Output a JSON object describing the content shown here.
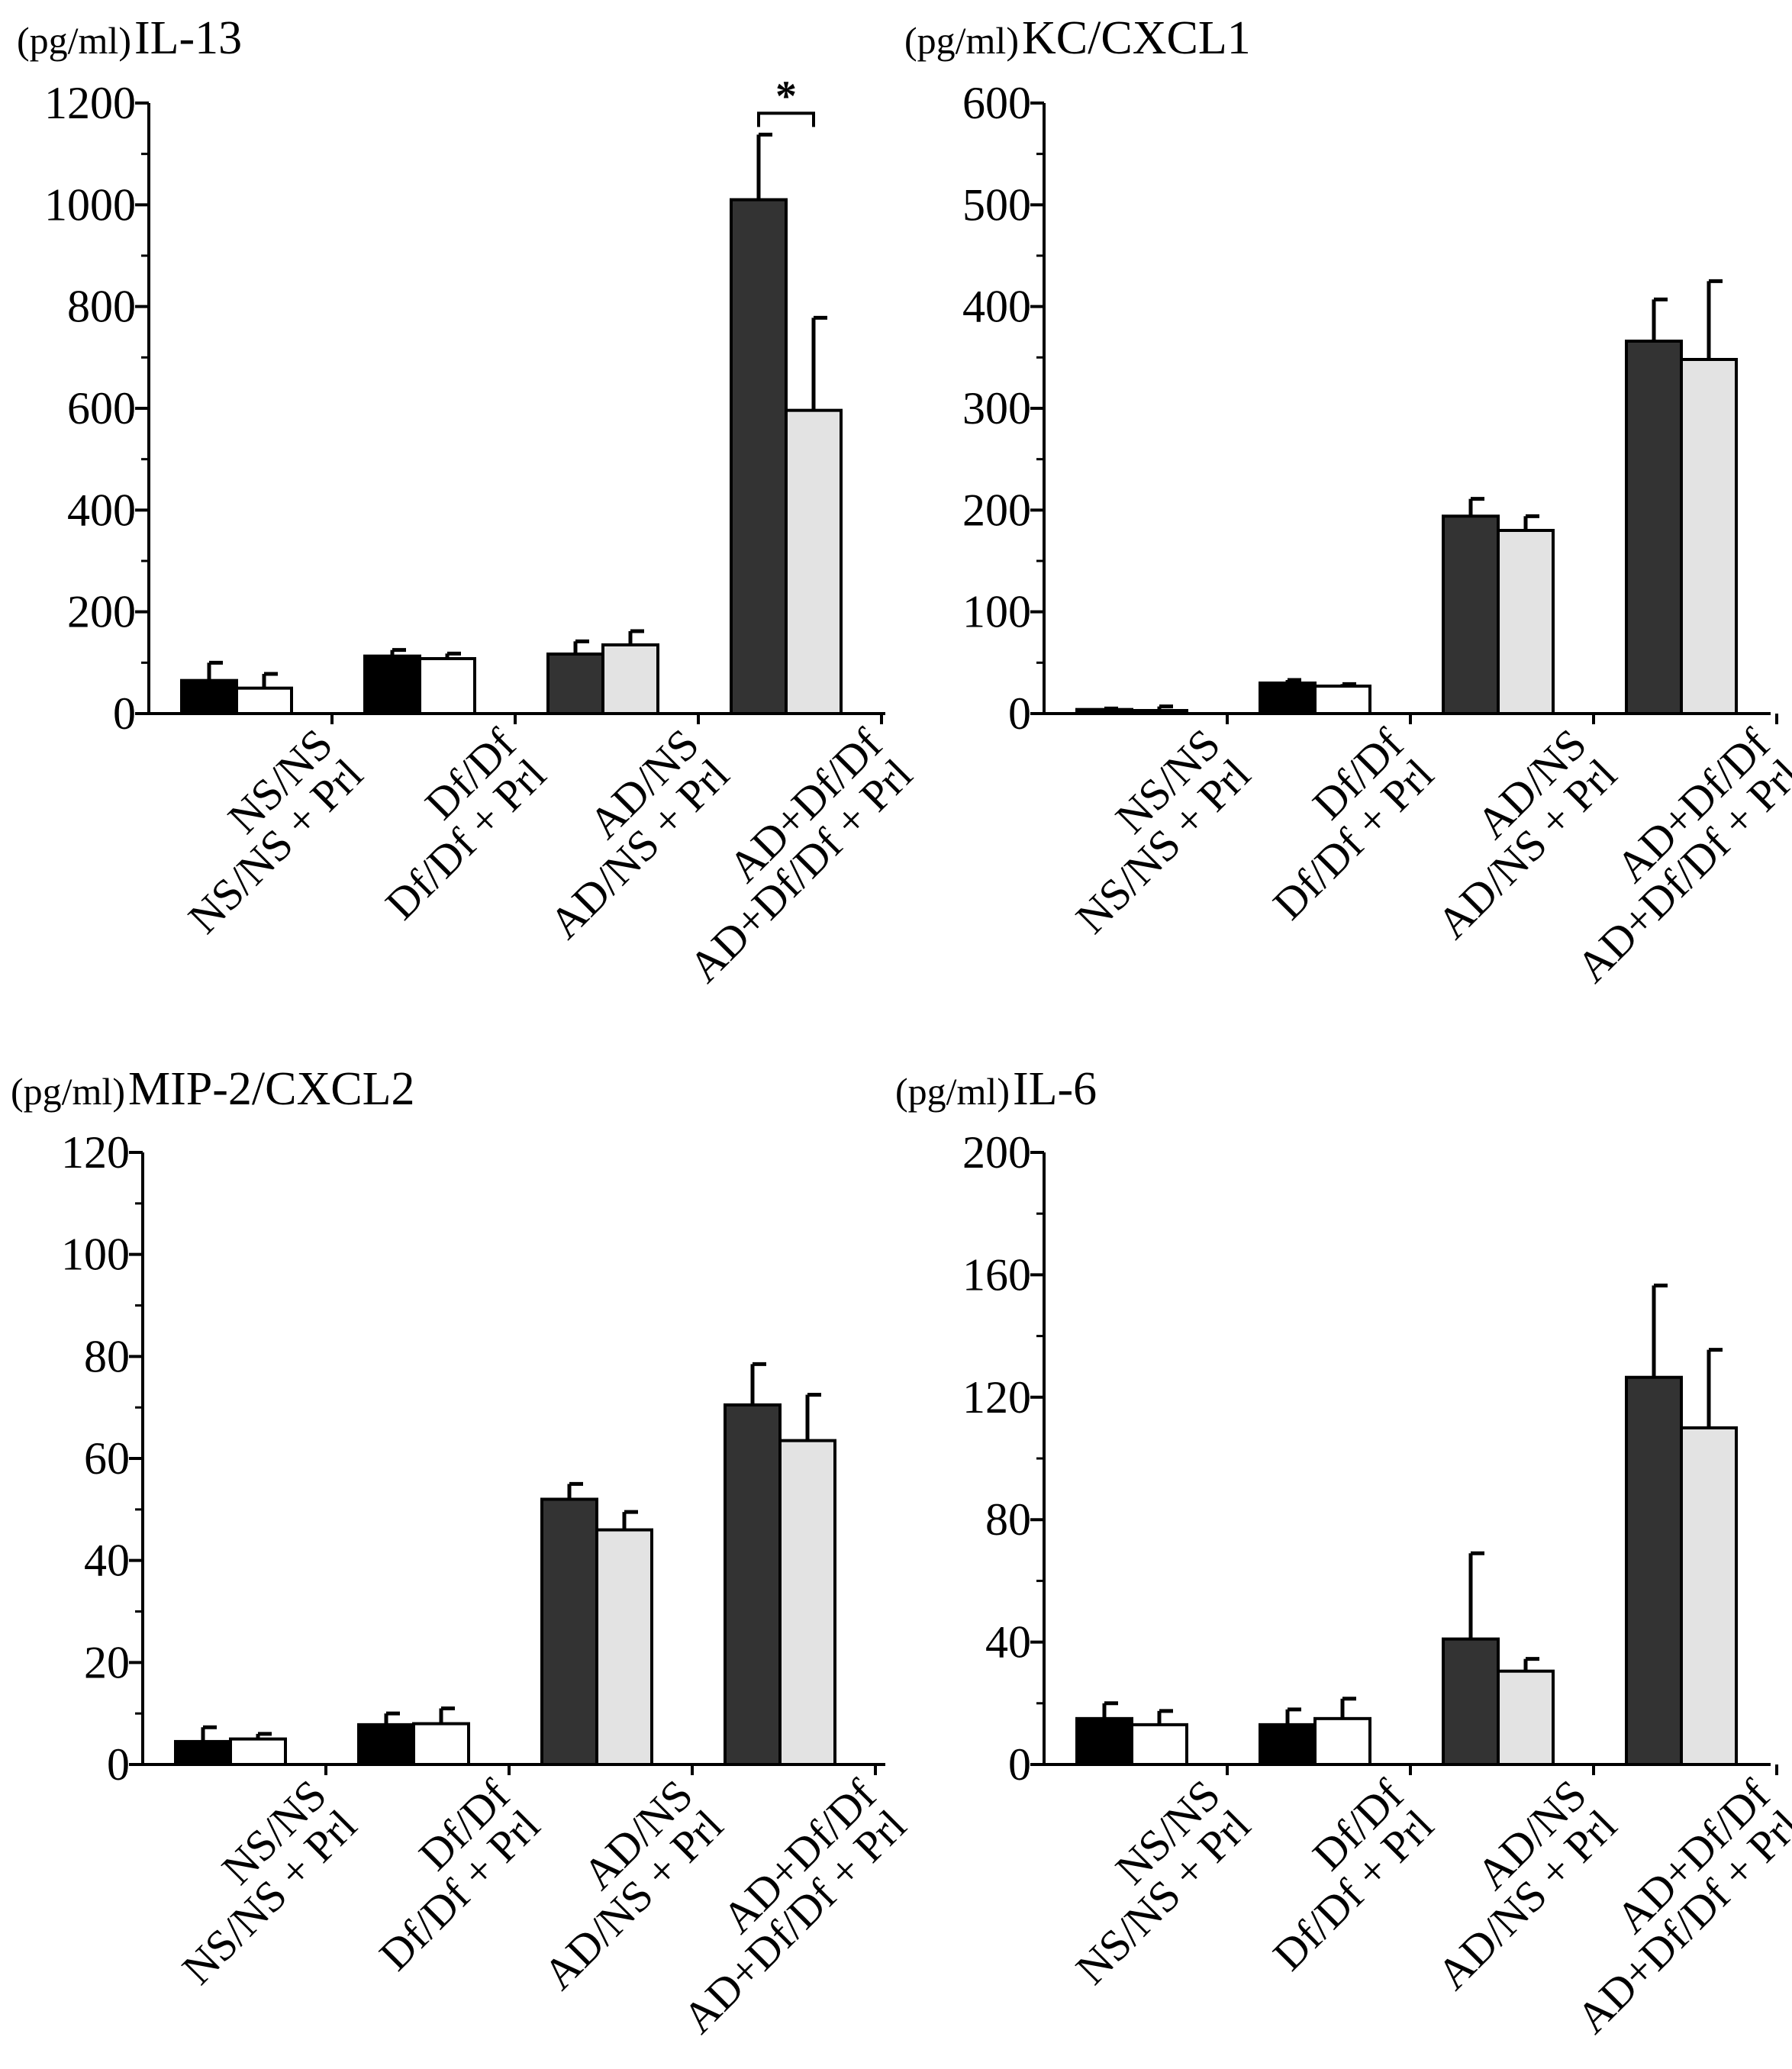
{
  "colors": {
    "ns_ns": "#000000",
    "ns_ns_prl": "#ffffff",
    "df_df": "#000000",
    "df_df_prl": "#ffffff",
    "ad_ns": "#333333",
    "ad_ns_prl": "#e3e3e3",
    "ad_df": "#333333",
    "ad_df_prl": "#e3e3e3",
    "stroke": "#000000"
  },
  "chart_data": [
    {
      "type": "bar",
      "unit": "(pg/ml)",
      "title": "IL-13",
      "ylim": [
        0,
        1200
      ],
      "ticks": [
        0,
        200,
        400,
        600,
        800,
        1000,
        1200
      ],
      "tick_labels": [
        "0",
        "200",
        "400",
        "600",
        "800",
        "1000",
        "1200"
      ],
      "minor_step": 100,
      "groups": [
        {
          "bars": [
            {
              "label": "NS/NS",
              "value": 65,
              "error": 35,
              "fill": "ns_ns"
            },
            {
              "label": "NS/NS + Prl",
              "value": 50,
              "error": 28,
              "fill": "ns_ns_prl"
            }
          ]
        },
        {
          "bars": [
            {
              "label": "Df/Df",
              "value": 113,
              "error": 12,
              "fill": "df_df"
            },
            {
              "label": "Df/Df + Prl",
              "value": 108,
              "error": 10,
              "fill": "df_df_prl"
            }
          ]
        },
        {
          "bars": [
            {
              "label": "AD/NS",
              "value": 117,
              "error": 25,
              "fill": "ad_ns"
            },
            {
              "label": "AD/NS + Prl",
              "value": 135,
              "error": 27,
              "fill": "ad_ns_prl"
            }
          ]
        },
        {
          "bars": [
            {
              "label": "AD+Df/Df",
              "value": 1010,
              "error": 128,
              "fill": "ad_df"
            },
            {
              "label": "AD+Df/Df + Prl",
              "value": 596,
              "error": 182,
              "fill": "ad_df_prl"
            }
          ]
        }
      ],
      "significance": {
        "group": 3,
        "label": "*"
      }
    },
    {
      "type": "bar",
      "unit": "(pg/ml)",
      "title": "KC/CXCL1",
      "ylim": [
        0,
        600
      ],
      "ticks": [
        0,
        100,
        200,
        300,
        400,
        500,
        600
      ],
      "tick_labels": [
        "0",
        "100",
        "200",
        "300",
        "400",
        "500",
        "600"
      ],
      "minor_step": 50,
      "groups": [
        {
          "bars": [
            {
              "label": "NS/NS",
              "value": 4,
              "error": 1,
              "fill": "ns_ns"
            },
            {
              "label": "NS/NS + Prl",
              "value": 3,
              "error": 4,
              "fill": "ns_ns_prl"
            }
          ]
        },
        {
          "bars": [
            {
              "label": "Df/Df",
              "value": 30,
              "error": 3,
              "fill": "df_df"
            },
            {
              "label": "Df/Df + Prl",
              "value": 27,
              "error": 2,
              "fill": "df_df_prl"
            }
          ]
        },
        {
          "bars": [
            {
              "label": "AD/NS",
              "value": 194,
              "error": 17,
              "fill": "ad_ns"
            },
            {
              "label": "AD/NS + Prl",
              "value": 180,
              "error": 14,
              "fill": "ad_ns_prl"
            }
          ]
        },
        {
          "bars": [
            {
              "label": "AD+Df/Df",
              "value": 366,
              "error": 41,
              "fill": "ad_df"
            },
            {
              "label": "AD+Df/Df + Prl",
              "value": 348,
              "error": 77,
              "fill": "ad_df_prl"
            }
          ]
        }
      ]
    },
    {
      "type": "bar",
      "unit": "(pg/ml)",
      "title": "MIP-2/CXCL2",
      "ylim": [
        0,
        120
      ],
      "ticks": [
        0,
        20,
        40,
        60,
        80,
        100,
        120
      ],
      "tick_labels": [
        "0",
        "20",
        "40",
        "60",
        "80",
        "100",
        "120"
      ],
      "minor_step": 10,
      "groups": [
        {
          "bars": [
            {
              "label": "NS/NS",
              "value": 4.5,
              "error": 2.8,
              "fill": "ns_ns"
            },
            {
              "label": "NS/NS + Prl",
              "value": 5,
              "error": 1,
              "fill": "ns_ns_prl"
            }
          ]
        },
        {
          "bars": [
            {
              "label": "Df/Df",
              "value": 7.8,
              "error": 2.2,
              "fill": "df_df"
            },
            {
              "label": "Df/Df + Prl",
              "value": 8,
              "error": 3,
              "fill": "df_df_prl"
            }
          ]
        },
        {
          "bars": [
            {
              "label": "AD/NS",
              "value": 52,
              "error": 3,
              "fill": "ad_ns"
            },
            {
              "label": "AD/NS + Prl",
              "value": 46,
              "error": 3.5,
              "fill": "ad_ns_prl"
            }
          ]
        },
        {
          "bars": [
            {
              "label": "AD+Df/Df",
              "value": 70.5,
              "error": 8,
              "fill": "ad_df"
            },
            {
              "label": "AD+Df/Df + Prl",
              "value": 63.5,
              "error": 9,
              "fill": "ad_df_prl"
            }
          ]
        }
      ]
    },
    {
      "type": "bar",
      "unit": "(pg/ml)",
      "title": "IL-6",
      "ylim": [
        0,
        200
      ],
      "ticks": [
        0,
        40,
        80,
        120,
        160,
        200
      ],
      "tick_labels": [
        "0",
        "40",
        "80",
        "120",
        "160",
        "200"
      ],
      "minor_step": 20,
      "groups": [
        {
          "bars": [
            {
              "label": "NS/NS",
              "value": 15,
              "error": 5,
              "fill": "ns_ns"
            },
            {
              "label": "NS/NS + Prl",
              "value": 13,
              "error": 4.5,
              "fill": "ns_ns_prl"
            }
          ]
        },
        {
          "bars": [
            {
              "label": "Df/Df",
              "value": 13,
              "error": 5,
              "fill": "df_df"
            },
            {
              "label": "Df/Df + Prl",
              "value": 15,
              "error": 6.5,
              "fill": "df_df_prl"
            }
          ]
        },
        {
          "bars": [
            {
              "label": "AD/NS",
              "value": 41,
              "error": 28,
              "fill": "ad_ns"
            },
            {
              "label": "AD/NS + Prl",
              "value": 30.5,
              "error": 4,
              "fill": "ad_ns_prl"
            }
          ]
        },
        {
          "bars": [
            {
              "label": "AD+Df/Df",
              "value": 126.5,
              "error": 30,
              "fill": "ad_df"
            },
            {
              "label": "AD+Df/Df + Prl",
              "value": 110,
              "error": 25.5,
              "fill": "ad_df_prl"
            }
          ]
        }
      ]
    }
  ]
}
